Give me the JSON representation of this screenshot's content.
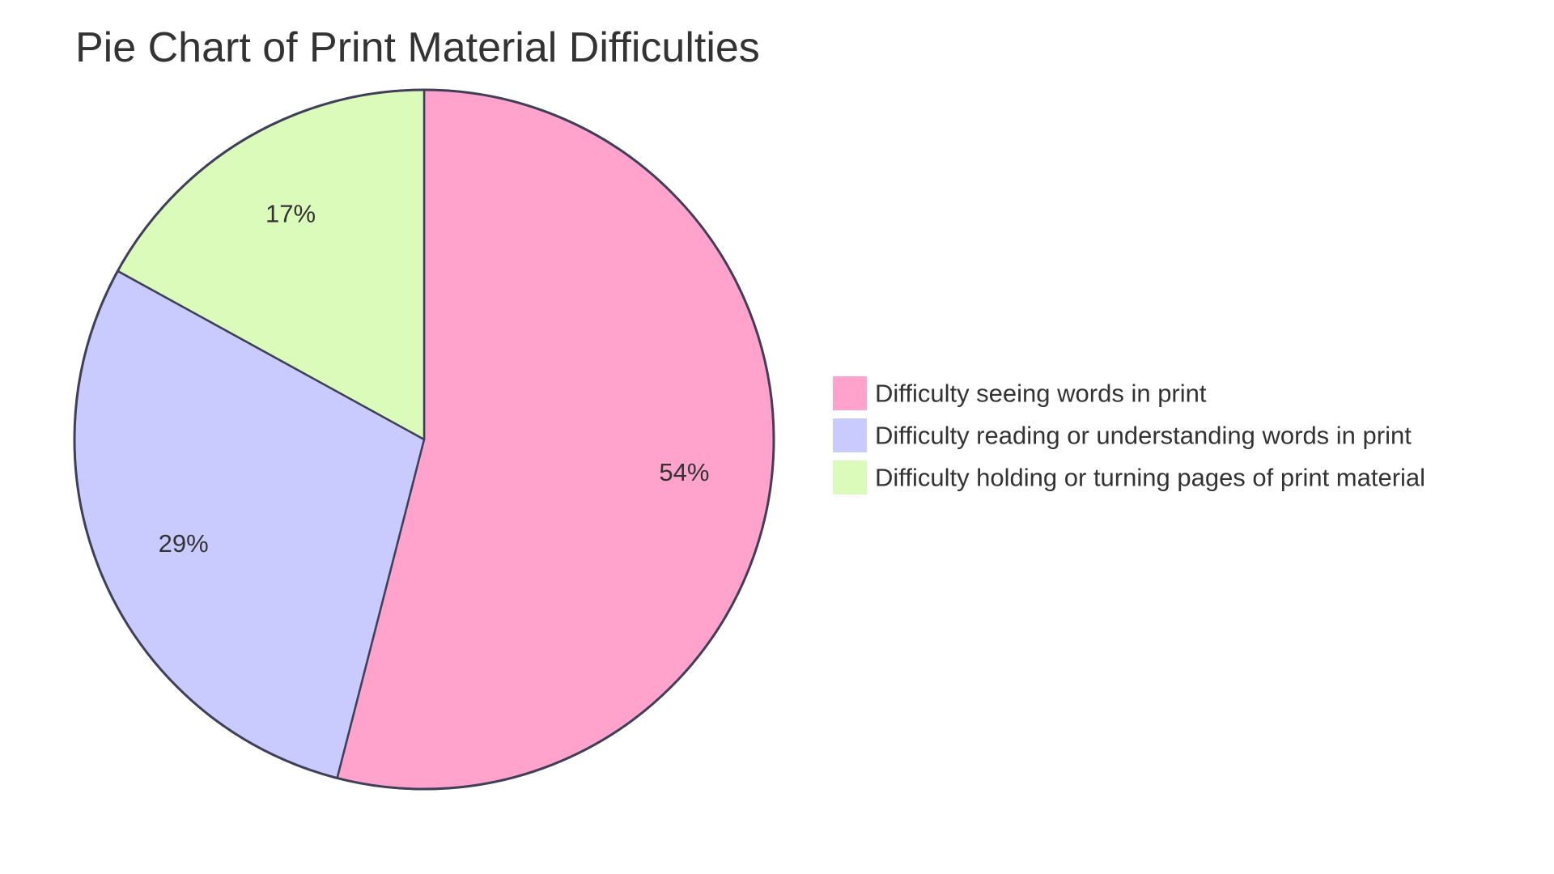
{
  "chart_data": {
    "type": "pie",
    "title": "Pie Chart of Print Material Difficulties",
    "slices": [
      {
        "label": "Difficulty seeing words in print",
        "value": 54,
        "display": "54%",
        "color": "#FFA3CD"
      },
      {
        "label": "Difficulty reading or understanding words in print",
        "value": 29,
        "display": "29%",
        "color": "#C9CBFF"
      },
      {
        "label": "Difficulty holding or turning pages of print material",
        "value": 17,
        "display": "17%",
        "color": "#DBFBBA"
      }
    ],
    "start_angle": "12 o'clock",
    "direction": "clockwise",
    "legend_position": "right",
    "stroke_color": "#3F3F5A"
  }
}
